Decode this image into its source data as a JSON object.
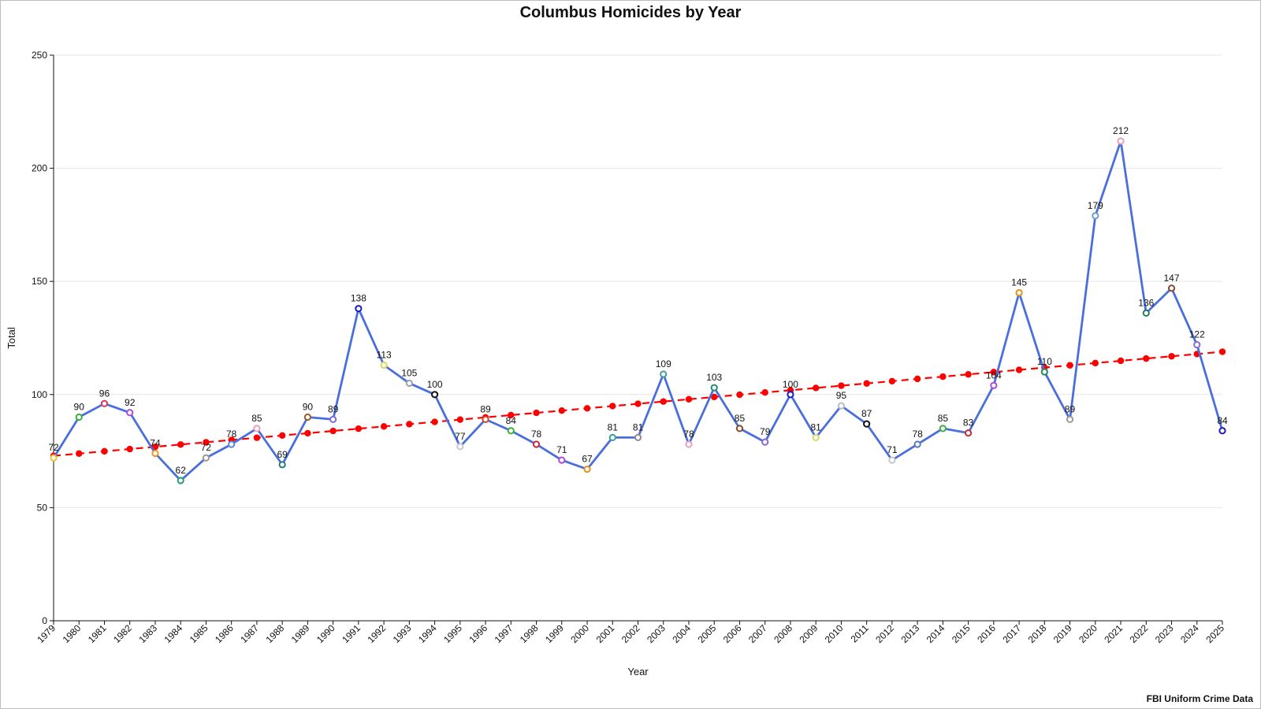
{
  "chart_data": {
    "type": "line",
    "title": "Columbus Homicides by Year",
    "xlabel": "Year",
    "ylabel": "Total",
    "source": "FBI Uniform Crime Data",
    "ylim": [
      0,
      250
    ],
    "yticks": [
      0,
      50,
      100,
      150,
      200,
      250
    ],
    "grid": true,
    "categories": [
      "1979",
      "1980",
      "1981",
      "1982",
      "1983",
      "1984",
      "1985",
      "1986",
      "1987",
      "1988",
      "1989",
      "1990",
      "1991",
      "1992",
      "1993",
      "1994",
      "1995",
      "1996",
      "1997",
      "1998",
      "1999",
      "2000",
      "2001",
      "2002",
      "2003",
      "2004",
      "2005",
      "2006",
      "2007",
      "2008",
      "2009",
      "2010",
      "2011",
      "2012",
      "2013",
      "2014",
      "2015",
      "2016",
      "2017",
      "2018",
      "2019",
      "2020",
      "2021",
      "2022",
      "2023",
      "2024",
      "2025"
    ],
    "series": [
      {
        "values": [
          72,
          90,
          96,
          92,
          74,
          62,
          72,
          78,
          85,
          69,
          90,
          89,
          138,
          113,
          105,
          100,
          77,
          89,
          84,
          78,
          71,
          67,
          81,
          81,
          109,
          78,
          103,
          85,
          79,
          100,
          81,
          95,
          87,
          71,
          78,
          85,
          83,
          104,
          145,
          110,
          89,
          179,
          212,
          136,
          147,
          122,
          84
        ],
        "color": "#4a6fdc",
        "style": "solid",
        "show_labels": true
      },
      {
        "values": [
          72.9,
          73.9,
          74.9,
          75.9,
          76.9,
          77.9,
          78.9,
          79.9,
          80.9,
          81.9,
          82.9,
          83.9,
          84.9,
          85.9,
          86.9,
          87.9,
          88.9,
          89.9,
          90.9,
          91.9,
          92.9,
          93.9,
          94.9,
          95.9,
          96.9,
          97.9,
          98.9,
          99.9,
          100.9,
          101.9,
          102.9,
          103.9,
          104.9,
          105.9,
          106.9,
          107.9,
          108.9,
          109.9,
          110.9,
          111.9,
          112.9,
          113.9,
          114.9,
          115.9,
          116.9,
          117.9,
          118.9
        ],
        "color": "#ff0000",
        "style": "dashed",
        "show_labels": false
      }
    ],
    "marker_colors": [
      "#e8c23a",
      "#3ab03a",
      "#d83a5a",
      "#b04ad8",
      "#e89a2a",
      "#2a9a7a",
      "#9a9a9a",
      "#5a8ad8",
      "#e8a0c0",
      "#2a7a7a",
      "#9a5a2a",
      "#7a6ad8",
      "#1a1ac8",
      "#d8d85a",
      "#9aa0b8",
      "#111111",
      "#c8c8c8",
      "#c84a2a",
      "#3ab03a",
      "#c8283a",
      "#b04ad8",
      "#e8901a",
      "#3aa090",
      "#8a8a9a",
      "#4a9a9a",
      "#e8a0c0",
      "#2a8a7a",
      "#8a4a2a",
      "#8a6ad8",
      "#1a1ac8",
      "#d8d86a",
      "#b8bcc8",
      "#111111",
      "#c8c8c8",
      "#5a7ab8",
      "#3ab03a",
      "#c8283a",
      "#b04ad8",
      "#e8901a",
      "#2a8a5a",
      "#9a9a9a",
      "#6aa0c8",
      "#e8a0c0",
      "#2a7a5a",
      "#8a4a2a",
      "#8a6ad8",
      "#1a1ac8"
    ]
  }
}
